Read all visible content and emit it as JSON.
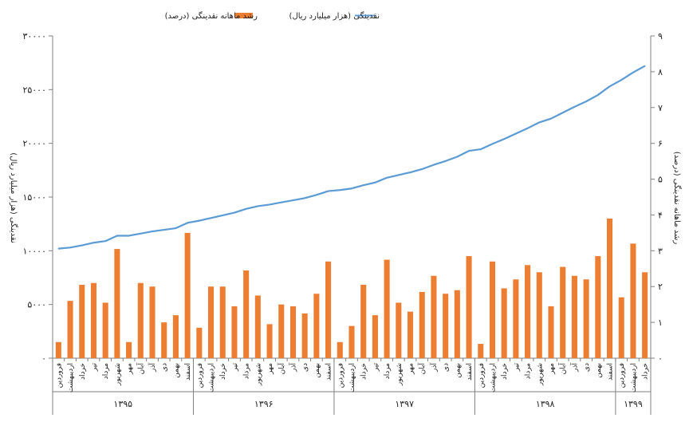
{
  "chart_data": {
    "type": "bar",
    "legend": {
      "placement": "top",
      "bar_label": "رشد ماهانه نقدینگی (درصد)",
      "line_label": "نقدینگی (هزار میلیارد ریال)"
    },
    "ylabel_left": "نقدینگی (هزار میلیارد ریال)",
    "ylabel_right": "رشد ماهانه نقدینگی (درصد)",
    "ylim_left": [
      0,
      30000
    ],
    "ylim_right": [
      0,
      9
    ],
    "yticks_left": [
      "۰",
      "۵۰۰۰",
      "۱۰۰۰۰",
      "۱۵۰۰۰",
      "۲۰۰۰۰",
      "۲۵۰۰۰",
      "۳۰۰۰۰"
    ],
    "yticks_right": [
      "۰",
      "۱",
      "۲",
      "۳",
      "۴",
      "۵",
      "۶",
      "۷",
      "۸",
      "۹"
    ],
    "grid": false,
    "colors": {
      "bars": "#ED7D31",
      "line": "#5B9BD5",
      "axis": "#7F7F7F"
    },
    "months": [
      "فروردین",
      "اردیبهشت",
      "خرداد",
      "تیر",
      "مرداد",
      "شهریور",
      "مهر",
      "آبان",
      "آذر",
      "دی",
      "بهمن",
      "اسفند"
    ],
    "years": [
      {
        "label": "۱۳۹۵",
        "months": 12
      },
      {
        "label": "۱۳۹۶",
        "months": 12
      },
      {
        "label": "۱۳۹۷",
        "months": 12
      },
      {
        "label": "۱۳۹۸",
        "months": 12
      },
      {
        "label": "۱۳۹۹",
        "months": 3
      }
    ],
    "series": [
      {
        "name": "رشد ماهانه نقدینگی (درصد)",
        "type": "bar",
        "axis": "right",
        "values": [
          0.45,
          1.6,
          2.05,
          2.1,
          1.55,
          3.05,
          0.45,
          2.1,
          2.0,
          1.0,
          1.2,
          3.5,
          0.85,
          2.0,
          2.0,
          1.45,
          2.45,
          1.75,
          0.95,
          1.5,
          1.45,
          1.25,
          1.8,
          2.7,
          0.45,
          0.9,
          2.05,
          1.2,
          2.75,
          1.55,
          1.3,
          1.85,
          2.3,
          1.8,
          1.9,
          2.85,
          0.4,
          2.7,
          1.95,
          2.2,
          2.6,
          2.4,
          1.45,
          2.55,
          2.3,
          2.2,
          2.85,
          3.9,
          1.7,
          3.2,
          2.4
        ]
      },
      {
        "name": "نقدینگی (هزار میلیارد ریال)",
        "type": "line",
        "axis": "left",
        "values": [
          10200,
          10300,
          10500,
          10750,
          10900,
          11400,
          11400,
          11600,
          11800,
          11950,
          12100,
          12600,
          12800,
          13050,
          13300,
          13550,
          13900,
          14150,
          14300,
          14500,
          14700,
          14900,
          15200,
          15550,
          15650,
          15800,
          16100,
          16350,
          16800,
          17050,
          17300,
          17600,
          18000,
          18350,
          18750,
          19300,
          19450,
          19950,
          20400,
          20900,
          21400,
          21950,
          22300,
          22850,
          23400,
          23900,
          24500,
          25300,
          25900,
          26600,
          27200
        ]
      }
    ]
  }
}
